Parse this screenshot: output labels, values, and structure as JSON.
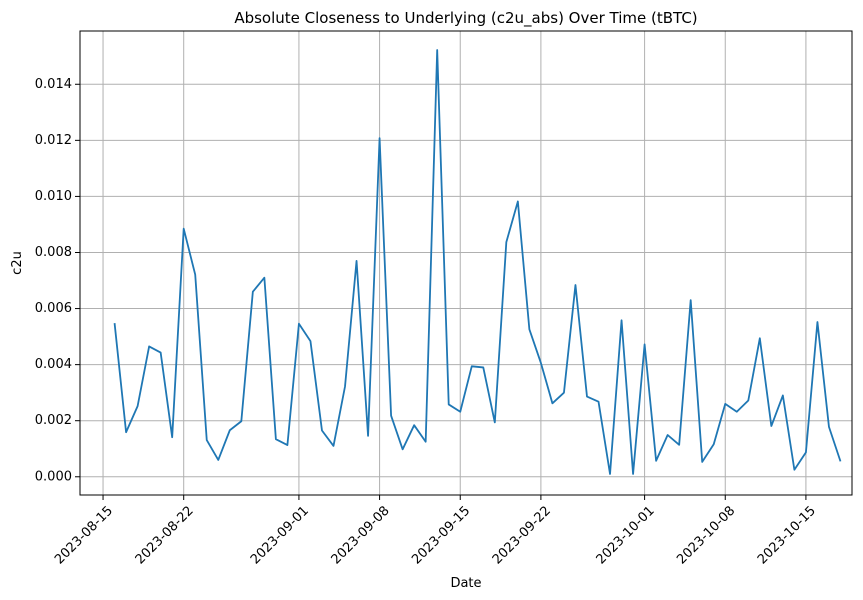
{
  "chart_data": {
    "type": "line",
    "title": "Absolute Closeness to Underlying (c2u_abs) Over Time (tBTC)",
    "xlabel": "Date",
    "ylabel": "c2u",
    "x_range": [
      "2023-08-13",
      "2023-10-19"
    ],
    "ylim": [
      -0.00065,
      0.0159
    ],
    "grid": true,
    "x_ticks": [
      "2023-08-15",
      "2023-08-22",
      "2023-09-01",
      "2023-09-08",
      "2023-09-15",
      "2023-09-22",
      "2023-10-01",
      "2023-10-08",
      "2023-10-15"
    ],
    "y_ticks": [
      "0.000",
      "0.002",
      "0.004",
      "0.006",
      "0.008",
      "0.010",
      "0.012",
      "0.014"
    ],
    "color": "#1f77b4",
    "series": [
      {
        "x": [
          "2023-08-16",
          "2023-08-17",
          "2023-08-18",
          "2023-08-19",
          "2023-08-20",
          "2023-08-21",
          "2023-08-22",
          "2023-08-23",
          "2023-08-24",
          "2023-08-25",
          "2023-08-26",
          "2023-08-27",
          "2023-08-28",
          "2023-08-29",
          "2023-08-30",
          "2023-08-31",
          "2023-09-01",
          "2023-09-02",
          "2023-09-03",
          "2023-09-04",
          "2023-09-05",
          "2023-09-06",
          "2023-09-07",
          "2023-09-08",
          "2023-09-09",
          "2023-09-10",
          "2023-09-11",
          "2023-09-12",
          "2023-09-13",
          "2023-09-14",
          "2023-09-15",
          "2023-09-16",
          "2023-09-17",
          "2023-09-18",
          "2023-09-19",
          "2023-09-20",
          "2023-09-21",
          "2023-09-22",
          "2023-09-23",
          "2023-09-24",
          "2023-09-25",
          "2023-09-26",
          "2023-09-27",
          "2023-09-28",
          "2023-09-29",
          "2023-09-30",
          "2023-10-01",
          "2023-10-02",
          "2023-10-03",
          "2023-10-04",
          "2023-10-05",
          "2023-10-06",
          "2023-10-07",
          "2023-10-08",
          "2023-10-09",
          "2023-10-10",
          "2023-10-11",
          "2023-10-12",
          "2023-10-13",
          "2023-10-14",
          "2023-10-15",
          "2023-10-16",
          "2023-10-17",
          "2023-10-18"
        ],
        "values": [
          0.00548,
          0.00159,
          0.00252,
          0.00465,
          0.00443,
          0.00141,
          0.00885,
          0.00721,
          0.00131,
          0.0006,
          0.00166,
          0.00198,
          0.0066,
          0.0071,
          0.00134,
          0.00113,
          0.00546,
          0.00484,
          0.00165,
          0.0011,
          0.00322,
          0.0077,
          0.00146,
          0.01208,
          0.00218,
          0.00098,
          0.00184,
          0.00125,
          0.01522,
          0.00258,
          0.00232,
          0.00394,
          0.0039,
          0.00194,
          0.00837,
          0.00982,
          0.00526,
          0.00406,
          0.00262,
          0.003,
          0.00684,
          0.00286,
          0.00268,
          0.0001,
          0.00558,
          0.0001,
          0.00472,
          0.00057,
          0.00149,
          0.00114,
          0.0063,
          0.00053,
          0.00116,
          0.0026,
          0.00232,
          0.00272,
          0.00494,
          0.00181,
          0.0029,
          0.00025,
          0.00087,
          0.00552,
          0.00178,
          0.00055
        ]
      }
    ]
  }
}
